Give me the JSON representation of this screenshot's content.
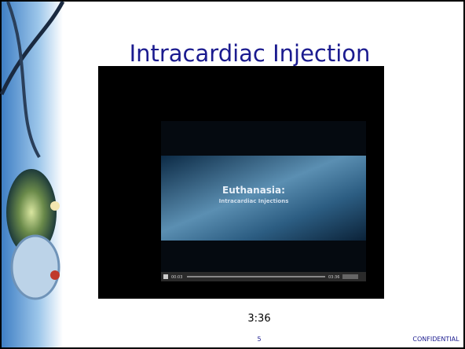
{
  "slide": {
    "title": "Intracardiac Injection",
    "video": {
      "heading": "Euthanasia:",
      "subheading": "Intracardiac Injections",
      "elapsed": "00:03",
      "duration": "03:36"
    },
    "caption": "3:36",
    "page_number": "5",
    "footer": "CONFIDENTIAL"
  }
}
